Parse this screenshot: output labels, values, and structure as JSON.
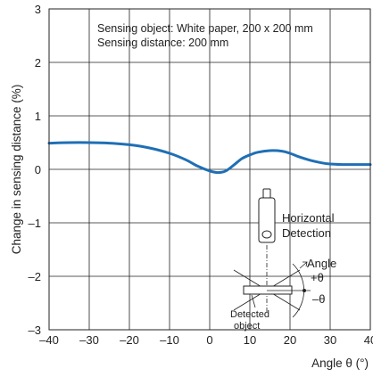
{
  "chart_data": {
    "type": "line",
    "title": "",
    "xlabel": "Angle θ (°)",
    "ylabel": "Change in sensing distance  (%)",
    "xlim": [
      -40,
      40
    ],
    "ylim": [
      -3,
      3
    ],
    "x_ticks": [
      -40,
      -30,
      -20,
      -10,
      0,
      10,
      20,
      30,
      40
    ],
    "y_ticks": [
      -3,
      -2,
      -1,
      0,
      1,
      2,
      3
    ],
    "x_tick_labels": [
      "–40",
      "–30",
      "–20",
      "–10",
      "0",
      "10",
      "20",
      "30",
      "40"
    ],
    "y_tick_labels": [
      "–3",
      "–2",
      "–1",
      "0",
      "1",
      "2",
      "3"
    ],
    "grid": true,
    "annotations": [
      "Sensing object: White paper, 200 x 200 mm",
      "Sensing distance: 200 mm"
    ],
    "series": [
      {
        "color": "#1f6fb5",
        "x": [
          -40,
          -35,
          -30,
          -25,
          -20,
          -15,
          -10,
          -6,
          -3,
          0,
          2,
          4,
          6,
          8,
          10,
          12,
          15,
          18,
          20,
          22,
          25,
          28,
          30,
          33,
          35,
          38,
          40
        ],
        "y": [
          0.49,
          0.5,
          0.5,
          0.49,
          0.46,
          0.4,
          0.3,
          0.18,
          0.06,
          -0.03,
          -0.06,
          -0.03,
          0.08,
          0.2,
          0.27,
          0.32,
          0.35,
          0.34,
          0.3,
          0.24,
          0.17,
          0.12,
          0.1,
          0.09,
          0.09,
          0.09,
          0.09
        ]
      }
    ]
  },
  "diagram": {
    "horizontal_label": "Horizontal",
    "detection_label": "Detection",
    "angle_label": "Angle",
    "plus_theta": "+θ",
    "minus_theta": "–θ",
    "detected_label": "Detected",
    "object_label": "object"
  }
}
